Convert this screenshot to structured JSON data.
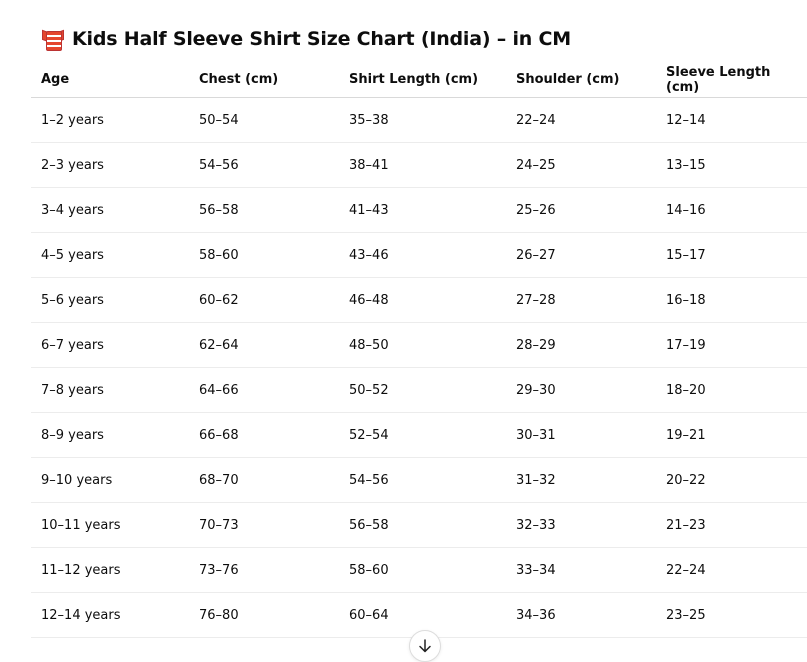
{
  "title": {
    "icon": "running-shirt-emoji",
    "text": "Kids Half Sleeve Shirt Size Chart (India) – in CM"
  },
  "table": {
    "headers": [
      "Age",
      "Chest (cm)",
      "Shirt Length (cm)",
      "Shoulder (cm)",
      "Sleeve Length (cm)"
    ],
    "rows": [
      [
        "1–2 years",
        "50–54",
        "35–38",
        "22–24",
        "12–14"
      ],
      [
        "2–3 years",
        "54–56",
        "38–41",
        "24–25",
        "13–15"
      ],
      [
        "3–4 years",
        "56–58",
        "41–43",
        "25–26",
        "14–16"
      ],
      [
        "4–5 years",
        "58–60",
        "43–46",
        "26–27",
        "15–17"
      ],
      [
        "5–6 years",
        "60–62",
        "46–48",
        "27–28",
        "16–18"
      ],
      [
        "6–7 years",
        "62–64",
        "48–50",
        "28–29",
        "17–19"
      ],
      [
        "7–8 years",
        "64–66",
        "50–52",
        "29–30",
        "18–20"
      ],
      [
        "8–9 years",
        "66–68",
        "52–54",
        "30–31",
        "19–21"
      ],
      [
        "9–10 years",
        "68–70",
        "54–56",
        "31–32",
        "20–22"
      ],
      [
        "10–11 years",
        "70–73",
        "56–58",
        "32–33",
        "21–23"
      ],
      [
        "11–12 years",
        "73–76",
        "58–60",
        "33–34",
        "22–24"
      ],
      [
        "12–14 years",
        "76–80",
        "60–64",
        "34–36",
        "23–25"
      ]
    ]
  },
  "scroll_button": {
    "icon": "arrow-down-icon"
  }
}
